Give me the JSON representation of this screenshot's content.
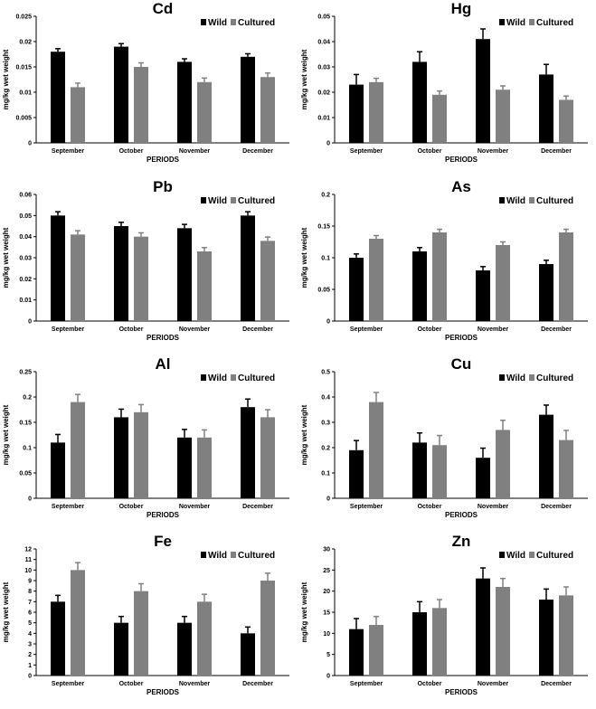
{
  "colors": {
    "wild": "#000000",
    "cultured": "#808080"
  },
  "chart_data": [
    {
      "type": "bar",
      "title": "Cd",
      "categories": [
        "September",
        "October",
        "November",
        "December"
      ],
      "xlabel": "PERIODS",
      "ylabel": "mg/kg wet weight",
      "ylim": [
        0,
        0.025
      ],
      "yticks": [
        "0",
        "0.005",
        "0.01",
        "0.015",
        "0.02",
        "0.025"
      ],
      "legend": "top-right",
      "series": [
        {
          "name": "Wild",
          "values": [
            0.018,
            0.019,
            0.016,
            0.017
          ],
          "errors": [
            0.0006,
            0.0006,
            0.0006,
            0.0006
          ]
        },
        {
          "name": "Cultured",
          "values": [
            0.011,
            0.015,
            0.012,
            0.013
          ],
          "errors": [
            0.0008,
            0.0008,
            0.0008,
            0.0008
          ]
        }
      ]
    },
    {
      "type": "bar",
      "title": "Hg",
      "categories": [
        "September",
        "October",
        "November",
        "December"
      ],
      "xlabel": "PERIODS",
      "ylabel": "mg/kg wet weight",
      "ylim": [
        0,
        0.05
      ],
      "yticks": [
        "0",
        "0.01",
        "0.02",
        "0.03",
        "0.04",
        "0.05"
      ],
      "legend": "top-right",
      "series": [
        {
          "name": "Wild",
          "values": [
            0.023,
            0.032,
            0.041,
            0.027
          ],
          "errors": [
            0.004,
            0.004,
            0.004,
            0.004
          ]
        },
        {
          "name": "Cultured",
          "values": [
            0.024,
            0.019,
            0.021,
            0.017
          ],
          "errors": [
            0.0015,
            0.0015,
            0.0015,
            0.0015
          ]
        }
      ]
    },
    {
      "type": "bar",
      "title": "Pb",
      "categories": [
        "September",
        "October",
        "November",
        "December"
      ],
      "xlabel": "PERIODS",
      "ylabel": "mg/kg wet weight",
      "ylim": [
        0,
        0.06
      ],
      "yticks": [
        "0",
        "0.01",
        "0.02",
        "0.03",
        "0.04",
        "0.05",
        "0.06"
      ],
      "legend": "top-right",
      "series": [
        {
          "name": "Wild",
          "values": [
            0.05,
            0.045,
            0.044,
            0.05
          ],
          "errors": [
            0.0018,
            0.0018,
            0.0018,
            0.0018
          ]
        },
        {
          "name": "Cultured",
          "values": [
            0.041,
            0.04,
            0.033,
            0.038
          ],
          "errors": [
            0.0018,
            0.0018,
            0.0018,
            0.0018
          ]
        }
      ]
    },
    {
      "type": "bar",
      "title": "As",
      "categories": [
        "September",
        "October",
        "November",
        "December"
      ],
      "xlabel": "PERIODS",
      "ylabel": "mg/kg wet weight",
      "ylim": [
        0,
        0.2
      ],
      "yticks": [
        "0",
        "0.05",
        "0.1",
        "0.15",
        "0.2"
      ],
      "legend": "top-right",
      "series": [
        {
          "name": "Wild",
          "values": [
            0.1,
            0.11,
            0.08,
            0.09
          ],
          "errors": [
            0.006,
            0.006,
            0.006,
            0.006
          ]
        },
        {
          "name": "Cultured",
          "values": [
            0.13,
            0.14,
            0.12,
            0.14
          ],
          "errors": [
            0.005,
            0.005,
            0.005,
            0.005
          ]
        }
      ]
    },
    {
      "type": "bar",
      "title": "Al",
      "categories": [
        "September",
        "October",
        "November",
        "December"
      ],
      "xlabel": "PERIODS",
      "ylabel": "mg/kg wet weight",
      "ylim": [
        0,
        0.25
      ],
      "yticks": [
        "0",
        "0.05",
        "0.1",
        "0.15",
        "0.2",
        "0.25"
      ],
      "legend": "top-right",
      "series": [
        {
          "name": "Wild",
          "values": [
            0.11,
            0.16,
            0.12,
            0.18
          ],
          "errors": [
            0.016,
            0.016,
            0.016,
            0.016
          ]
        },
        {
          "name": "Cultured",
          "values": [
            0.19,
            0.17,
            0.12,
            0.16
          ],
          "errors": [
            0.015,
            0.015,
            0.015,
            0.015
          ]
        }
      ]
    },
    {
      "type": "bar",
      "title": "Cu",
      "categories": [
        "September",
        "October",
        "November",
        "December"
      ],
      "xlabel": "PERIODS",
      "ylabel": "mg/kg wet weight",
      "ylim": [
        0,
        0.5
      ],
      "yticks": [
        "0",
        "0.1",
        "0.2",
        "0.3",
        "0.4",
        "0.5"
      ],
      "legend": "top-right",
      "series": [
        {
          "name": "Wild",
          "values": [
            0.19,
            0.22,
            0.16,
            0.33
          ],
          "errors": [
            0.038,
            0.038,
            0.038,
            0.038
          ]
        },
        {
          "name": "Cultured",
          "values": [
            0.38,
            0.21,
            0.27,
            0.23
          ],
          "errors": [
            0.038,
            0.038,
            0.038,
            0.038
          ]
        }
      ]
    },
    {
      "type": "bar",
      "title": "Fe",
      "categories": [
        "September",
        "October",
        "November",
        "December"
      ],
      "xlabel": "PERIODS",
      "ylabel": "mg/kg wet weight",
      "ylim": [
        0,
        12
      ],
      "yticks": [
        "0",
        "1",
        "2",
        "3",
        "4",
        "5",
        "6",
        "7",
        "8",
        "9",
        "10",
        "11",
        "12"
      ],
      "legend": "top-right",
      "series": [
        {
          "name": "Wild",
          "values": [
            7,
            5,
            5,
            4
          ],
          "errors": [
            0.6,
            0.6,
            0.6,
            0.6
          ]
        },
        {
          "name": "Cultured",
          "values": [
            10,
            8,
            7,
            9
          ],
          "errors": [
            0.7,
            0.7,
            0.7,
            0.7
          ]
        }
      ]
    },
    {
      "type": "bar",
      "title": "Zn",
      "categories": [
        "September",
        "October",
        "November",
        "December"
      ],
      "xlabel": "PERIODS",
      "ylabel": "mg/kg wet weight",
      "ylim": [
        0,
        30
      ],
      "yticks": [
        "0",
        "5",
        "10",
        "15",
        "20",
        "25",
        "30"
      ],
      "legend": "top-right",
      "series": [
        {
          "name": "Wild",
          "values": [
            11,
            15,
            23,
            18
          ],
          "errors": [
            2.5,
            2.5,
            2.5,
            2.5
          ]
        },
        {
          "name": "Cultured",
          "values": [
            12,
            16,
            21,
            19
          ],
          "errors": [
            2,
            2,
            2,
            2
          ]
        }
      ]
    }
  ]
}
